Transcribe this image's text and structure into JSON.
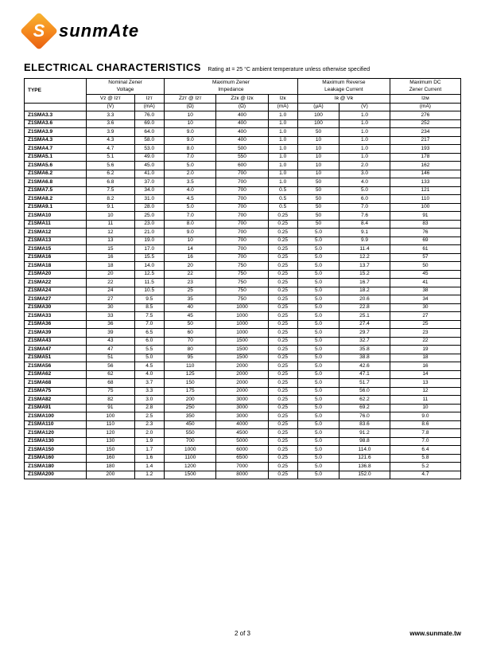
{
  "logo_text": "sunmAte",
  "section_title": "ELECTRICAL CHARACTERISTICS",
  "section_sub": "Rating at  = 25 °C ambient temperature unless otherwise specified",
  "headers": {
    "group_row": [
      "Nominal Zener\nVoltage",
      "Maximum Zener\nImpedance",
      "Maximum Reverse\nLeakage Current",
      "Maximum DC\nZener Current"
    ],
    "type_label": "TYPE",
    "sym_row": [
      "Vz @ Izт",
      "Izт",
      "Zzт @ Izт",
      "Zzк @ Izк",
      "Izк",
      "Iʀ  @   Vʀ",
      "Izм"
    ],
    "unit_row": [
      "(V)",
      "(mA)",
      "(Ω)",
      "(Ω)",
      "(mA)",
      "(µA)",
      "(V)",
      "(mA)"
    ]
  },
  "rows": [
    [
      "Z1SMA3.3",
      "3.3",
      "76.0",
      "10",
      "400",
      "1.0",
      "100",
      "1.0",
      "276"
    ],
    [
      "Z1SMA3.6",
      "3.6",
      "69.0",
      "10",
      "400",
      "1.0",
      "100",
      "1.0",
      "252"
    ],
    [
      "Z1SMA3.9",
      "3.9",
      "64.0",
      "9.0",
      "400",
      "1.0",
      "50",
      "1.0",
      "234"
    ],
    [
      "Z1SMA4.3",
      "4.3",
      "58.0",
      "9.0",
      "400",
      "1.0",
      "10",
      "1.0",
      "217"
    ],
    [
      "Z1SMA4.7",
      "4.7",
      "53.0",
      "8.0",
      "500",
      "1.0",
      "10",
      "1.0",
      "193"
    ],
    [
      "Z1SMA5.1",
      "5.1",
      "49.0",
      "7.0",
      "550",
      "1.0",
      "10",
      "1.0",
      "178"
    ],
    [
      "Z1SMA5.6",
      "5.6",
      "45.0",
      "5.0",
      "600",
      "1.0",
      "10",
      "2.0",
      "162"
    ],
    [
      "Z1SMA6.2",
      "6.2",
      "41.0",
      "2.0",
      "700",
      "1.0",
      "10",
      "3.0",
      "146"
    ],
    [
      "Z1SMA6.8",
      "6.8",
      "37.0",
      "3.5",
      "700",
      "1.0",
      "50",
      "4.0",
      "133"
    ],
    [
      "Z1SMA7.5",
      "7.5",
      "34.0",
      "4.0",
      "700",
      "0.5",
      "50",
      "5.0",
      "121"
    ],
    [
      "Z1SMA8.2",
      "8.2",
      "31.0",
      "4.5",
      "700",
      "0.5",
      "50",
      "6.0",
      "110"
    ],
    [
      "Z1SMA9.1",
      "9.1",
      "28.0",
      "5.0",
      "700",
      "0.5",
      "50",
      "7.0",
      "100"
    ],
    [
      "Z1SMA10",
      "10",
      "25.0",
      "7.0",
      "700",
      "0.25",
      "50",
      "7.6",
      "91"
    ],
    [
      "Z1SMA11",
      "11",
      "23.0",
      "8.0",
      "700",
      "0.25",
      "50",
      "8.4",
      "83"
    ],
    [
      "Z1SMA12",
      "12",
      "21.0",
      "9.0",
      "700",
      "0.25",
      "5.0",
      "9.1",
      "76"
    ],
    [
      "Z1SMA13",
      "13",
      "19.0",
      "10",
      "700",
      "0.25",
      "5.0",
      "9.9",
      "69"
    ],
    [
      "Z1SMA15",
      "15",
      "17.0",
      "14",
      "700",
      "0.25",
      "5.0",
      "11.4",
      "61"
    ],
    [
      "Z1SMA16",
      "16",
      "15.5",
      "16",
      "700",
      "0.25",
      "5.0",
      "12.2",
      "57"
    ],
    [
      "Z1SMA18",
      "18",
      "14.0",
      "20",
      "750",
      "0.25",
      "5.0",
      "13.7",
      "50"
    ],
    [
      "Z1SMA20",
      "20",
      "12.5",
      "22",
      "750",
      "0.25",
      "5.0",
      "15.2",
      "45"
    ],
    [
      "Z1SMA22",
      "22",
      "11.5",
      "23",
      "750",
      "0.25",
      "5.0",
      "16.7",
      "41"
    ],
    [
      "Z1SMA24",
      "24",
      "10.5",
      "25",
      "750",
      "0.25",
      "5.0",
      "18.2",
      "38"
    ],
    [
      "Z1SMA27",
      "27",
      "9.5",
      "35",
      "750",
      "0.25",
      "5.0",
      "20.6",
      "34"
    ],
    [
      "Z1SMA30",
      "30",
      "8.5",
      "40",
      "1000",
      "0.25",
      "5.0",
      "22.8",
      "30"
    ],
    [
      "Z1SMA33",
      "33",
      "7.5",
      "45",
      "1000",
      "0.25",
      "5.0",
      "25.1",
      "27"
    ],
    [
      "Z1SMA36",
      "36",
      "7.0",
      "50",
      "1000",
      "0.25",
      "5.0",
      "27.4",
      "25"
    ],
    [
      "Z1SMA39",
      "39",
      "6.5",
      "60",
      "1000",
      "0.25",
      "5.0",
      "29.7",
      "23"
    ],
    [
      "Z1SMA43",
      "43",
      "6.0",
      "70",
      "1500",
      "0.25",
      "5.0",
      "32.7",
      "22"
    ],
    [
      "Z1SMA47",
      "47",
      "5.5",
      "80",
      "1500",
      "0.25",
      "5.0",
      "35.8",
      "19"
    ],
    [
      "Z1SMA51",
      "51",
      "5.0",
      "95",
      "1500",
      "0.25",
      "5.0",
      "38.8",
      "18"
    ],
    [
      "Z1SMA56",
      "56",
      "4.5",
      "110",
      "2000",
      "0.25",
      "5.0",
      "42.6",
      "16"
    ],
    [
      "Z1SMA62",
      "62",
      "4.0",
      "125",
      "2000",
      "0.25",
      "5.0",
      "47.1",
      "14"
    ],
    [
      "Z1SMA68",
      "68",
      "3.7",
      "150",
      "2000",
      "0.25",
      "5.0",
      "51.7",
      "13"
    ],
    [
      "Z1SMA75",
      "75",
      "3.3",
      "175",
      "2000",
      "0.25",
      "5.0",
      "56.0",
      "12"
    ],
    [
      "Z1SMA82",
      "82",
      "3.0",
      "200",
      "3000",
      "0.25",
      "5.0",
      "62.2",
      "11"
    ],
    [
      "Z1SMA91",
      "91",
      "2.8",
      "250",
      "3000",
      "0.25",
      "5.0",
      "69.2",
      "10"
    ],
    [
      "Z1SMA100",
      "100",
      "2.5",
      "350",
      "3000",
      "0.25",
      "5.0",
      "76.0",
      "9.0"
    ],
    [
      "Z1SMA110",
      "110",
      "2.3",
      "450",
      "4000",
      "0.25",
      "5.0",
      "83.6",
      "8.6"
    ],
    [
      "Z1SMA120",
      "120",
      "2.0",
      "550",
      "4500",
      "0.25",
      "5.0",
      "91.2",
      "7.8"
    ],
    [
      "Z1SMA130",
      "130",
      "1.9",
      "700",
      "5000",
      "0.25",
      "5.0",
      "98.8",
      "7.0"
    ],
    [
      "Z1SMA150",
      "150",
      "1.7",
      "1000",
      "6000",
      "0.25",
      "5.0",
      "114.0",
      "6.4"
    ],
    [
      "Z1SMA160",
      "160",
      "1.6",
      "1100",
      "6500",
      "0.25",
      "5.0",
      "121.6",
      "5.8"
    ],
    [
      "Z1SMA180",
      "180",
      "1.4",
      "1200",
      "7000",
      "0.25",
      "5.0",
      "136.8",
      "5.2"
    ],
    [
      "Z1SMA200",
      "200",
      "1.2",
      "1500",
      "8000",
      "0.25",
      "5.0",
      "152.0",
      "4.7"
    ]
  ],
  "footer": {
    "page": "2 of 3",
    "url": "www.sunmate.tw"
  }
}
